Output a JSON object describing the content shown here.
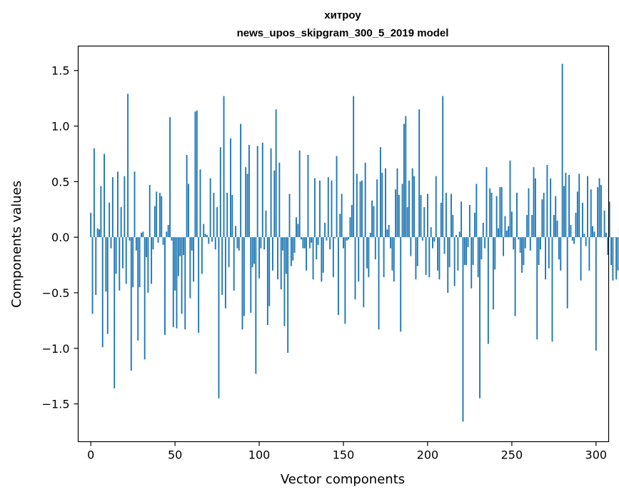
{
  "chart_data": {
    "type": "bar",
    "title": "хитроу",
    "subtitle": "news_upos_skipgram_300_5_2019 model",
    "xlabel": "Vector components",
    "ylabel": "Components values",
    "xlim": [
      -7.5,
      307.5
    ],
    "ylim": [
      -1.84,
      1.72
    ],
    "xticks": [
      0,
      50,
      100,
      150,
      200,
      250,
      300
    ],
    "yticks": [
      -1.5,
      -1.0,
      -0.5,
      0.0,
      0.5,
      1.0,
      1.5
    ],
    "xtick_labels": [
      "0",
      "50",
      "100",
      "150",
      "200",
      "250",
      "300"
    ],
    "ytick_labels": [
      "−1.5",
      "−1.0",
      "−0.5",
      "0.0",
      "0.5",
      "1.0",
      "1.5"
    ],
    "grid": false,
    "bar_color": "#1f77b4",
    "values": [
      0.22,
      -0.69,
      0.8,
      -0.52,
      0.08,
      0.07,
      0.46,
      -0.99,
      0.75,
      -0.49,
      -0.87,
      0.31,
      -0.1,
      0.54,
      -1.36,
      -0.33,
      0.59,
      -0.48,
      0.27,
      -0.28,
      0.55,
      -0.42,
      1.29,
      -0.03,
      -1.2,
      -0.45,
      0.59,
      -0.12,
      -0.93,
      -0.45,
      0.04,
      0.05,
      -1.1,
      -0.18,
      -0.5,
      0.47,
      -0.42,
      -0.11,
      0.28,
      0.41,
      -0.05,
      0.4,
      0.37,
      -0.07,
      -0.88,
      0.05,
      0.11,
      1.08,
      -0.03,
      -0.81,
      -0.48,
      -0.82,
      -0.35,
      -0.17,
      -0.69,
      -0.16,
      -0.83,
      0.74,
      0.48,
      -0.55,
      -0.12,
      -0.4,
      1.13,
      1.14,
      -0.86,
      0.61,
      -0.33,
      0.12,
      0.03,
      0.02,
      -0.06,
      0.53,
      -0.04,
      0.4,
      -0.11,
      0.27,
      -1.45,
      0.81,
      -0.52,
      1.27,
      -0.64,
      0.4,
      -0.27,
      0.89,
      0.38,
      -0.48,
      0.1,
      -0.1,
      -0.12,
      1.02,
      -0.83,
      -0.71,
      0.63,
      0.57,
      0.83,
      -0.68,
      -0.27,
      -0.24,
      -1.23,
      0.82,
      -0.37,
      -0.1,
      0.85,
      -0.11,
      0.24,
      -0.79,
      -0.62,
      0.8,
      -0.3,
      0.6,
      1.15,
      -0.38,
      0.67,
      -0.47,
      -0.12,
      -0.8,
      -0.33,
      -1.04,
      0.39,
      -0.26,
      -0.21,
      -0.14,
      0.18,
      0.12,
      0.78,
      -0.02,
      -0.1,
      -0.1,
      -0.3,
      0.74,
      -0.1,
      -0.05,
      -0.38,
      0.53,
      -0.2,
      -0.07,
      0.51,
      -0.4,
      -0.32,
      0.13,
      -0.03,
      0.54,
      -0.11,
      0.51,
      -0.36,
      -0.01,
      0.73,
      -0.7,
      0.21,
      0.39,
      -0.1,
      -0.78,
      -0.03,
      -0.02,
      0.18,
      0.29,
      1.27,
      -0.56,
      0.57,
      -0.4,
      0.5,
      0.51,
      -0.63,
      0.67,
      -0.28,
      -0.36,
      0.04,
      0.33,
      0.28,
      -0.2,
      0.52,
      -0.83,
      0.81,
      0.58,
      -0.36,
      0.62,
      0.07,
      0.11,
      -0.1,
      -0.3,
      -0.4,
      0.43,
      0.62,
      0.38,
      -0.85,
      0.48,
      1.02,
      1.09,
      0.27,
      0.51,
      -0.17,
      0.62,
      0.55,
      -0.38,
      -0.26,
      1.15,
      0.38,
      -0.03,
      0.27,
      -0.34,
      0.39,
      -0.36,
      0.09,
      -0.1,
      -0.04,
      0.55,
      -0.3,
      -0.38,
      0.31,
      1.27,
      -0.15,
      0.4,
      -0.5,
      -0.27,
      0.39,
      0.2,
      -0.44,
      0.02,
      -0.3,
      0.05,
      0.32,
      -1.66,
      -0.25,
      -0.25,
      -0.09,
      0.29,
      -0.46,
      -0.25,
      0.22,
      0.48,
      -0.36,
      -1.45,
      -0.2,
      0.13,
      -0.1,
      0.63,
      -0.96,
      0.44,
      0.4,
      -0.65,
      -0.29,
      0.37,
      0.08,
      0.45,
      0.45,
      -0.17,
      0.19,
      0.06,
      0.1,
      0.69,
      0.23,
      -0.11,
      -0.71,
      0.4,
      -0.02,
      -0.14,
      -0.32,
      -0.25,
      -0.1,
      0.2,
      0.44,
      -0.12,
      0.2,
      0.63,
      0.53,
      -0.92,
      -0.25,
      -0.11,
      0.34,
      0.4,
      -0.38,
      0.65,
      -0.28,
      0.53,
      -0.94,
      0.2,
      0.37,
      0.15,
      -0.2,
      -0.3,
      1.56,
      0.46,
      0.58,
      -0.64,
      0.56,
      0.11,
      -0.03,
      -0.06,
      0.22,
      0.41,
      0.57,
      -0.39,
      0.31,
      0.03,
      -0.08,
      0.55,
      -0.3,
      0.43,
      0.1,
      0.05,
      -1.02,
      0.45,
      0.53,
      0.47,
      0.0,
      0.24,
      0.04,
      -0.16,
      0.32,
      -0.25,
      -0.39,
      0.0,
      -0.38,
      -0.3,
      0.08
    ]
  }
}
